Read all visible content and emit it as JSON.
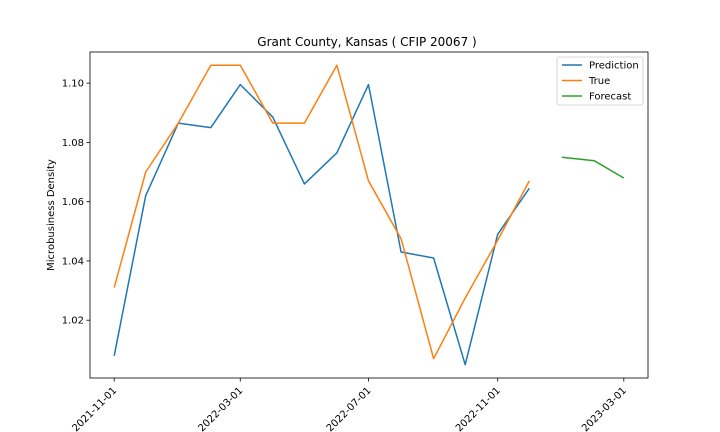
{
  "chart_data": {
    "type": "line",
    "title": "Grant County, Kansas ( CFIP 20067 )",
    "xlabel": "",
    "ylabel": "Microbusiness Density",
    "xlim": [
      "2021-10-09",
      "2023-03-24"
    ],
    "ylim": [
      1.0005,
      1.1105
    ],
    "x_ticks": [
      "2021-11-01",
      "2022-03-01",
      "2022-07-01",
      "2022-11-01",
      "2023-03-01"
    ],
    "y_ticks": [
      1.02,
      1.04,
      1.06,
      1.08,
      1.1
    ],
    "y_tick_labels": [
      "1.02",
      "1.04",
      "1.06",
      "1.08",
      "1.10"
    ],
    "grid": false,
    "legend_position": "top-right",
    "series": [
      {
        "name": "Prediction",
        "color": "#1f77b4",
        "x": [
          "2021-11-01",
          "2021-12-01",
          "2022-01-01",
          "2022-02-01",
          "2022-03-01",
          "2022-04-01",
          "2022-05-01",
          "2022-06-01",
          "2022-07-01",
          "2022-08-01",
          "2022-09-01",
          "2022-10-01",
          "2022-11-01",
          "2022-12-01"
        ],
        "values": [
          1.008,
          1.062,
          1.0865,
          1.085,
          1.0995,
          1.0885,
          1.066,
          1.0765,
          1.0995,
          1.043,
          1.041,
          1.005,
          1.049,
          1.0645
        ]
      },
      {
        "name": "True",
        "color": "#ff7f0e",
        "x": [
          "2021-11-01",
          "2021-12-01",
          "2022-01-01",
          "2022-02-01",
          "2022-03-01",
          "2022-04-01",
          "2022-05-01",
          "2022-06-01",
          "2022-07-01",
          "2022-08-01",
          "2022-09-01",
          "2022-10-01",
          "2022-11-01",
          "2022-12-01"
        ],
        "values": [
          1.031,
          1.07,
          1.0865,
          1.106,
          1.106,
          1.0865,
          1.0865,
          1.106,
          1.067,
          1.0475,
          1.007,
          1.0275,
          1.047,
          1.067
        ]
      },
      {
        "name": "Forecast",
        "color": "#2ca02c",
        "x": [
          "2023-01-01",
          "2023-02-01",
          "2023-03-01"
        ],
        "values": [
          1.075,
          1.0738,
          1.068
        ]
      }
    ]
  }
}
